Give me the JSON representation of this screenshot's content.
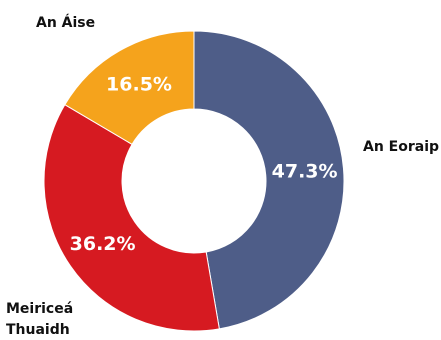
{
  "chart_data": {
    "type": "pie",
    "variant": "donut",
    "title": "",
    "legend": "labels-outside",
    "slices": [
      {
        "name": "An Eoraip",
        "value": 47.3,
        "label": "47.3%",
        "color": "#4e5d88"
      },
      {
        "name": "Meiriceá Thuaidh",
        "value": 36.2,
        "label": "36.2%",
        "color": "#d61a21"
      },
      {
        "name": "An Áise",
        "value": 16.5,
        "label": "16.5%",
        "color": "#f5a31c"
      }
    ]
  }
}
